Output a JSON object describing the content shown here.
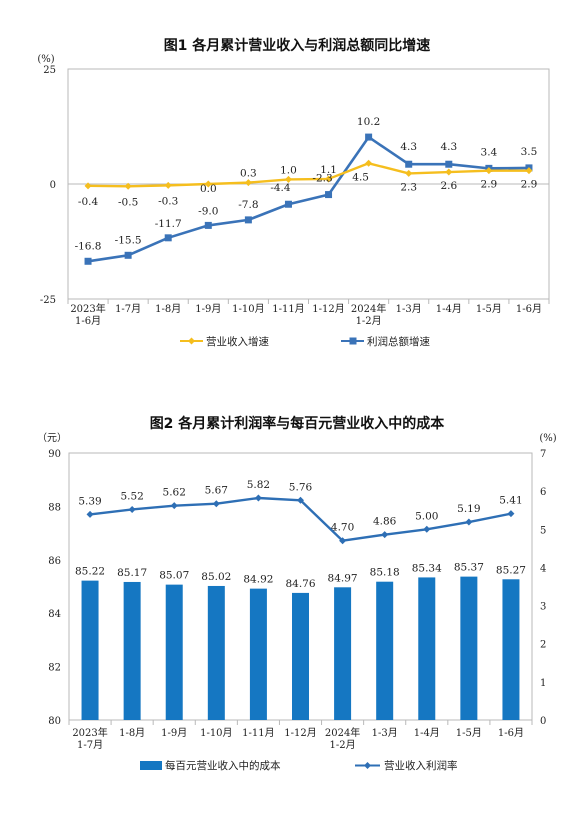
{
  "chart_data": [
    {
      "type": "line",
      "title": "图1  各月累计营业收入与利润总额同比增速",
      "unit": "(%)",
      "categories": [
        "2023年\n1-6月",
        "1-7月",
        "1-8月",
        "1-9月",
        "1-10月",
        "1-11月",
        "1-12月",
        "2024年\n1-2月",
        "1-3月",
        "1-4月",
        "1-5月",
        "1-6月"
      ],
      "ylim": [
        -25,
        25
      ],
      "yticks": [
        -25,
        0,
        25
      ],
      "grid": false,
      "legend_position": "bottom",
      "series": [
        {
          "name": "营业收入增速",
          "color": "#F5BE1E",
          "marker": "diamond",
          "values": [
            -0.4,
            -0.5,
            -0.3,
            0.0,
            0.3,
            1.0,
            1.1,
            4.5,
            2.3,
            2.6,
            2.9,
            2.9
          ],
          "labels": [
            "-0.4",
            "-0.5",
            "-0.3",
            "0.0",
            "0.3",
            "1.0",
            "1.1",
            "4.5",
            "2.3",
            "2.6",
            "2.9",
            "2.9"
          ]
        },
        {
          "name": "利润总额增速",
          "color": "#3A73B8",
          "marker": "square",
          "values": [
            -16.8,
            -15.5,
            -11.7,
            -9.0,
            -7.8,
            -4.4,
            -2.3,
            10.2,
            4.3,
            4.3,
            3.4,
            3.5
          ],
          "labels": [
            "-16.8",
            "-15.5",
            "-11.7",
            "-9.0",
            "-7.8",
            "-4.4",
            "-2.3",
            "10.2",
            "4.3",
            "4.3",
            "3.4",
            "3.5"
          ]
        }
      ]
    },
    {
      "type": "bar",
      "title": "图2  各月累计利润率与每百元营业收入中的成本",
      "left_unit": "（元）",
      "right_unit": "(%)",
      "categories": [
        "2023年\n1-7月",
        "1-8月",
        "1-9月",
        "1-10月",
        "1-11月",
        "1-12月",
        "2024年\n1-2月",
        "1-3月",
        "1-4月",
        "1-5月",
        "1-6月"
      ],
      "ylim": [
        80,
        90
      ],
      "yticks": [
        80,
        82,
        84,
        86,
        88,
        90
      ],
      "y2lim": [
        0,
        7
      ],
      "y2ticks": [
        0,
        1,
        2,
        3,
        4,
        5,
        6,
        7
      ],
      "grid": false,
      "legend_position": "bottom",
      "series": [
        {
          "name": "每百元营业收入中的成本",
          "type": "bar",
          "axis": "left",
          "color": "#1577C2",
          "values": [
            85.22,
            85.17,
            85.07,
            85.02,
            84.92,
            84.76,
            84.97,
            85.18,
            85.34,
            85.37,
            85.27
          ],
          "labels": [
            "85.22",
            "85.17",
            "85.07",
            "85.02",
            "84.92",
            "84.76",
            "84.97",
            "85.18",
            "85.34",
            "85.37",
            "85.27"
          ]
        },
        {
          "name": "营业收入利润率",
          "type": "line",
          "axis": "right",
          "color": "#2E6FB5",
          "marker": "diamond",
          "values": [
            5.39,
            5.52,
            5.62,
            5.67,
            5.82,
            5.76,
            4.7,
            4.86,
            5.0,
            5.19,
            5.41
          ],
          "labels": [
            "5.39",
            "5.52",
            "5.62",
            "5.67",
            "5.82",
            "5.76",
            "4.70",
            "4.86",
            "5.00",
            "5.19",
            "5.41"
          ]
        }
      ]
    }
  ]
}
